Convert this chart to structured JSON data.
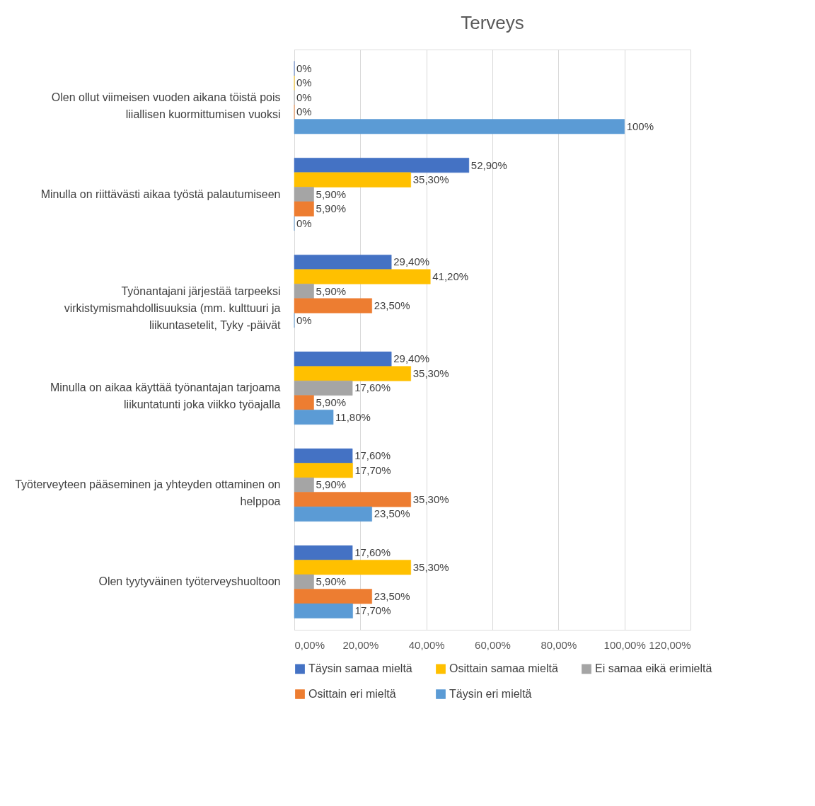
{
  "chart_data": {
    "type": "bar",
    "orientation": "horizontal",
    "title": "Terveys",
    "categories": [
      "Olen ollut viimeisen vuoden aikana töistä pois liiallisen kuormittumisen vuoksi",
      "Minulla on riittävästi aikaa työstä palautumiseen",
      "Työnantajani järjestää tarpeeksi virkistymismahdollisuuksia (mm. kulttuuri ja liikuntasetelit, Tyky -päivät",
      "Minulla on aikaa käyttää työnantajan tarjoama liikuntatunti joka viikko työajalla",
      "Työterveyteen pääseminen ja yhteyden ottaminen on helppoa",
      "Olen tyytyväinen työterveyshuoltoon"
    ],
    "series": [
      {
        "name": "Täysin samaa mieltä",
        "color": "#4472c4",
        "values": [
          0,
          52.9,
          29.4,
          29.4,
          17.6,
          17.6
        ],
        "value_labels": [
          "0%",
          "52,90%",
          "29,40%",
          "29,40%",
          "17,60%",
          "17,60%"
        ]
      },
      {
        "name": "Osittain samaa mieltä",
        "color": "#ffc000",
        "values": [
          0,
          35.3,
          41.2,
          35.3,
          17.7,
          35.3
        ],
        "value_labels": [
          "0%",
          "35,30%",
          "41,20%",
          "35,30%",
          "17,70%",
          "35,30%"
        ]
      },
      {
        "name": "Ei samaa eikä erimieltä",
        "color": "#a5a5a5",
        "values": [
          0,
          5.9,
          5.9,
          17.6,
          5.9,
          5.9
        ],
        "value_labels": [
          "0%",
          "5,90%",
          "5,90%",
          "17,60%",
          "5,90%",
          "5,90%"
        ]
      },
      {
        "name": "Osittain eri mieltä",
        "color": "#ed7d31",
        "values": [
          0,
          5.9,
          23.5,
          5.9,
          35.3,
          23.5
        ],
        "value_labels": [
          "0%",
          "5,90%",
          "23,50%",
          "5,90%",
          "35,30%",
          "23,50%"
        ]
      },
      {
        "name": "Täysin eri mieltä",
        "color": "#5b9bd5",
        "values": [
          100,
          0,
          0,
          11.8,
          23.5,
          17.7
        ],
        "value_labels": [
          "100%",
          "0%",
          "0%",
          "11,80%",
          "23,50%",
          "17,70%"
        ]
      }
    ],
    "xlim": [
      0,
      120
    ],
    "xticks": [
      {
        "value": 0,
        "label": "0,00%"
      },
      {
        "value": 20,
        "label": "20,00%"
      },
      {
        "value": 40,
        "label": "40,00%"
      },
      {
        "value": 60,
        "label": "60,00%"
      },
      {
        "value": 80,
        "label": "80,00%"
      },
      {
        "value": 100,
        "label": "100,00%"
      },
      {
        "value": 120,
        "label": "120,00%"
      }
    ],
    "grid": "x",
    "legend": "bottom"
  }
}
